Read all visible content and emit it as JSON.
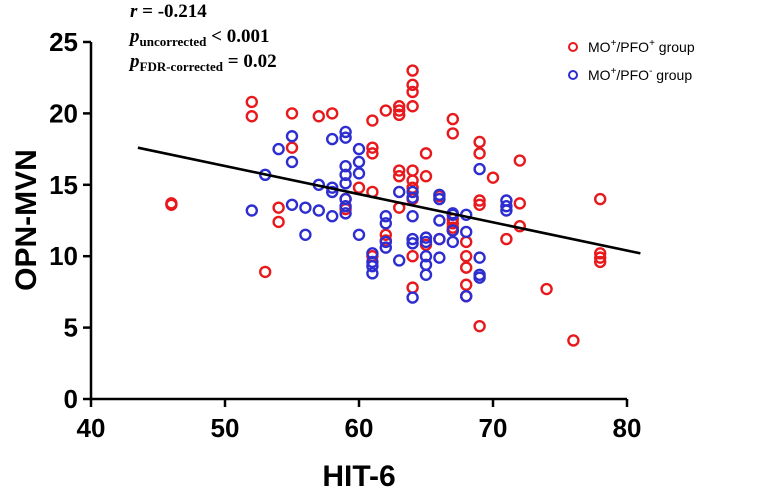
{
  "chart_data": {
    "type": "scatter",
    "xlabel": "HIT-6",
    "ylabel": "OPN-MVN",
    "xlim": [
      40,
      80
    ],
    "ylim": [
      0,
      25
    ],
    "xticks": [
      40,
      50,
      60,
      70,
      80
    ],
    "yticks": [
      0,
      5,
      10,
      15,
      20,
      25
    ],
    "grid": false,
    "legend_position": "top-right",
    "annotations": {
      "r": {
        "symbol": "r",
        "text": " = -0.214"
      },
      "p_uncorrected": {
        "symbol": "p",
        "sub": "uncorrected",
        "text": " < 0.001"
      },
      "p_fdr": {
        "symbol": "p",
        "sub": "FDR-corrected",
        "text": " = 0.02"
      }
    },
    "regression_line": {
      "x": [
        43.5,
        81
      ],
      "y": [
        17.6,
        10.2
      ],
      "color": "#000000"
    },
    "series": [
      {
        "name": "MO⁺/PFO⁺ group",
        "legend": {
          "base": "MO",
          "sup1": "+",
          "mid": "/PFO",
          "sup2": "+",
          "tail": " group"
        },
        "color": "#e8191c",
        "points": [
          [
            46,
            13.7
          ],
          [
            46,
            13.6
          ],
          [
            52,
            20.8
          ],
          [
            52,
            19.8
          ],
          [
            53,
            8.9
          ],
          [
            54,
            13.4
          ],
          [
            54,
            12.4
          ],
          [
            55,
            20
          ],
          [
            55,
            17.6
          ],
          [
            57,
            19.8
          ],
          [
            58,
            20
          ],
          [
            59,
            13.3
          ],
          [
            59,
            14
          ],
          [
            60,
            14.8
          ],
          [
            61,
            17.6
          ],
          [
            61,
            17.2
          ],
          [
            61,
            19.5
          ],
          [
            61,
            10
          ],
          [
            61,
            14.5
          ],
          [
            62,
            20.2
          ],
          [
            62,
            11.5
          ],
          [
            62,
            11.1
          ],
          [
            63,
            20.2
          ],
          [
            63,
            20.5
          ],
          [
            63,
            19.9
          ],
          [
            63,
            16
          ],
          [
            63,
            15.6
          ],
          [
            63,
            13.4
          ],
          [
            64,
            23
          ],
          [
            64,
            22
          ],
          [
            64,
            21.5
          ],
          [
            64,
            20.5
          ],
          [
            64,
            16
          ],
          [
            64,
            15.3
          ],
          [
            64,
            14.8
          ],
          [
            64,
            14
          ],
          [
            64,
            10
          ],
          [
            64,
            7.8
          ],
          [
            65,
            17.2
          ],
          [
            65,
            15.6
          ],
          [
            65,
            10.8
          ],
          [
            66,
            11.2
          ],
          [
            66,
            14.2
          ],
          [
            67,
            19.6
          ],
          [
            67,
            18.6
          ],
          [
            67,
            12.6
          ],
          [
            67,
            12
          ],
          [
            67,
            11.8
          ],
          [
            67,
            12.3
          ],
          [
            68,
            11
          ],
          [
            68,
            10
          ],
          [
            68,
            9.2
          ],
          [
            68,
            8
          ],
          [
            68,
            7.2
          ],
          [
            69,
            18
          ],
          [
            69,
            17.2
          ],
          [
            69,
            13.9
          ],
          [
            69,
            13.6
          ],
          [
            69,
            5.1
          ],
          [
            70,
            15.5
          ],
          [
            71,
            11.2
          ],
          [
            72,
            16.7
          ],
          [
            72,
            13.7
          ],
          [
            72,
            12.1
          ],
          [
            74,
            7.7
          ],
          [
            76,
            4.1
          ],
          [
            78,
            14
          ],
          [
            78,
            10.2
          ],
          [
            78,
            9.9
          ],
          [
            78,
            9.6
          ]
        ]
      },
      {
        "name": "MO⁺/PFO⁻ group",
        "legend": {
          "base": "MO",
          "sup1": "+",
          "mid": "/PFO",
          "sup2": "-",
          "tail": " group"
        },
        "color": "#2e2ed0",
        "points": [
          [
            52,
            13.2
          ],
          [
            53,
            15.7
          ],
          [
            54,
            17.5
          ],
          [
            55,
            18.4
          ],
          [
            55,
            16.6
          ],
          [
            55,
            13.6
          ],
          [
            56,
            13.4
          ],
          [
            56,
            11.5
          ],
          [
            57,
            13.2
          ],
          [
            57,
            15
          ],
          [
            58,
            14.8
          ],
          [
            58,
            14.5
          ],
          [
            58,
            12.8
          ],
          [
            58,
            18.2
          ],
          [
            59,
            18.7
          ],
          [
            59,
            18.3
          ],
          [
            59,
            16.3
          ],
          [
            59,
            15.7
          ],
          [
            59,
            15.1
          ],
          [
            59,
            14
          ],
          [
            59,
            13.5
          ],
          [
            59,
            13
          ],
          [
            60,
            17.5
          ],
          [
            60,
            16.6
          ],
          [
            60,
            15.8
          ],
          [
            60,
            11.5
          ],
          [
            61,
            10.2
          ],
          [
            61,
            9.6
          ],
          [
            61,
            9.3
          ],
          [
            61,
            8.8
          ],
          [
            62,
            12.8
          ],
          [
            62,
            12.3
          ],
          [
            62,
            11
          ],
          [
            62,
            10.6
          ],
          [
            63,
            14.5
          ],
          [
            63,
            9.7
          ],
          [
            64,
            14.5
          ],
          [
            64,
            14.1
          ],
          [
            64,
            12.8
          ],
          [
            64,
            11.2
          ],
          [
            64,
            10.9
          ],
          [
            64,
            7.1
          ],
          [
            65,
            11.3
          ],
          [
            65,
            11
          ],
          [
            65,
            10
          ],
          [
            65,
            9.4
          ],
          [
            65,
            8.7
          ],
          [
            66,
            14.3
          ],
          [
            66,
            14
          ],
          [
            66,
            12.5
          ],
          [
            66,
            11.2
          ],
          [
            66,
            9.9
          ],
          [
            67,
            13
          ],
          [
            67,
            12.9
          ],
          [
            67,
            11.8
          ],
          [
            67,
            11
          ],
          [
            68,
            12.9
          ],
          [
            68,
            11.7
          ],
          [
            68,
            7.2
          ],
          [
            69,
            16.1
          ],
          [
            69,
            9.9
          ],
          [
            69,
            8.7
          ],
          [
            69,
            8.5
          ],
          [
            71,
            13.9
          ],
          [
            71,
            13.5
          ],
          [
            71,
            13.2
          ]
        ]
      }
    ]
  }
}
